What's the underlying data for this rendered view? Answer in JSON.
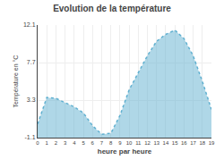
{
  "chart_data": {
    "type": "area",
    "title": "Evolution de la température",
    "xlabel": "heure par heure",
    "ylabel": "Température en °C",
    "x": [
      0,
      1,
      2,
      3,
      4,
      5,
      6,
      7,
      8,
      9,
      10,
      11,
      12,
      13,
      14,
      15,
      16,
      17,
      18,
      19
    ],
    "series": [
      {
        "color": "#60b0d0",
        "line_style": "dotted",
        "values": [
          0.5,
          3.6,
          3.5,
          3.0,
          2.5,
          1.8,
          0.3,
          -0.7,
          -0.6,
          1.5,
          4.5,
          6.5,
          8.5,
          10.2,
          11.0,
          11.5,
          10.5,
          8.5,
          5.5,
          2.2
        ]
      }
    ],
    "xlim": [
      0,
      19
    ],
    "xticks": [
      0,
      1,
      2,
      3,
      4,
      5,
      6,
      7,
      8,
      9,
      10,
      11,
      12,
      13,
      14,
      15,
      16,
      17,
      18,
      19
    ],
    "ylim": [
      -1.1,
      12.1
    ],
    "yticks": [
      -1.1,
      3.3,
      7.7,
      12.1
    ],
    "grid": true
  }
}
